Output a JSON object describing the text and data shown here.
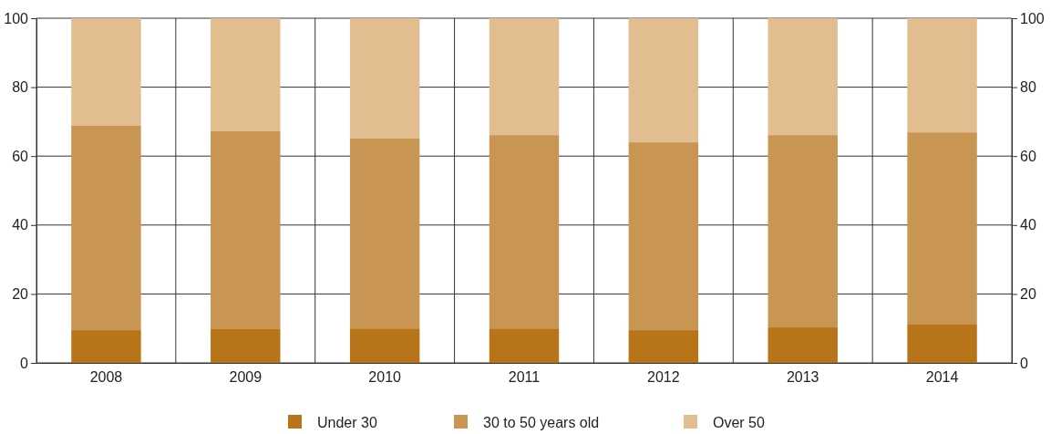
{
  "chart_data": {
    "type": "bar",
    "stacked": true,
    "categories": [
      "2008",
      "2009",
      "2010",
      "2011",
      "2012",
      "2013",
      "2014"
    ],
    "series": [
      {
        "name": "Under 30",
        "color": "#b87418",
        "values": [
          9.5,
          9.8,
          10,
          10,
          9.5,
          10.3,
          11.1
        ]
      },
      {
        "name": "30 to 50 years old",
        "color": "#c99553",
        "values": [
          59.3,
          57.4,
          55.1,
          56.1,
          54.5,
          55.8,
          55.8
        ]
      },
      {
        "name": "Over 50",
        "color": "#e2bd90",
        "values": [
          31.2,
          32.8,
          34.9,
          33.9,
          36,
          33.9,
          33.1
        ]
      }
    ],
    "ylim": [
      0,
      100
    ],
    "yticks": [
      0,
      20,
      40,
      60,
      80,
      100
    ],
    "y2lim": [
      0,
      100
    ],
    "y2ticks": [
      0,
      20,
      40,
      60,
      80,
      100
    ],
    "grid": true,
    "legend": "bottom"
  }
}
